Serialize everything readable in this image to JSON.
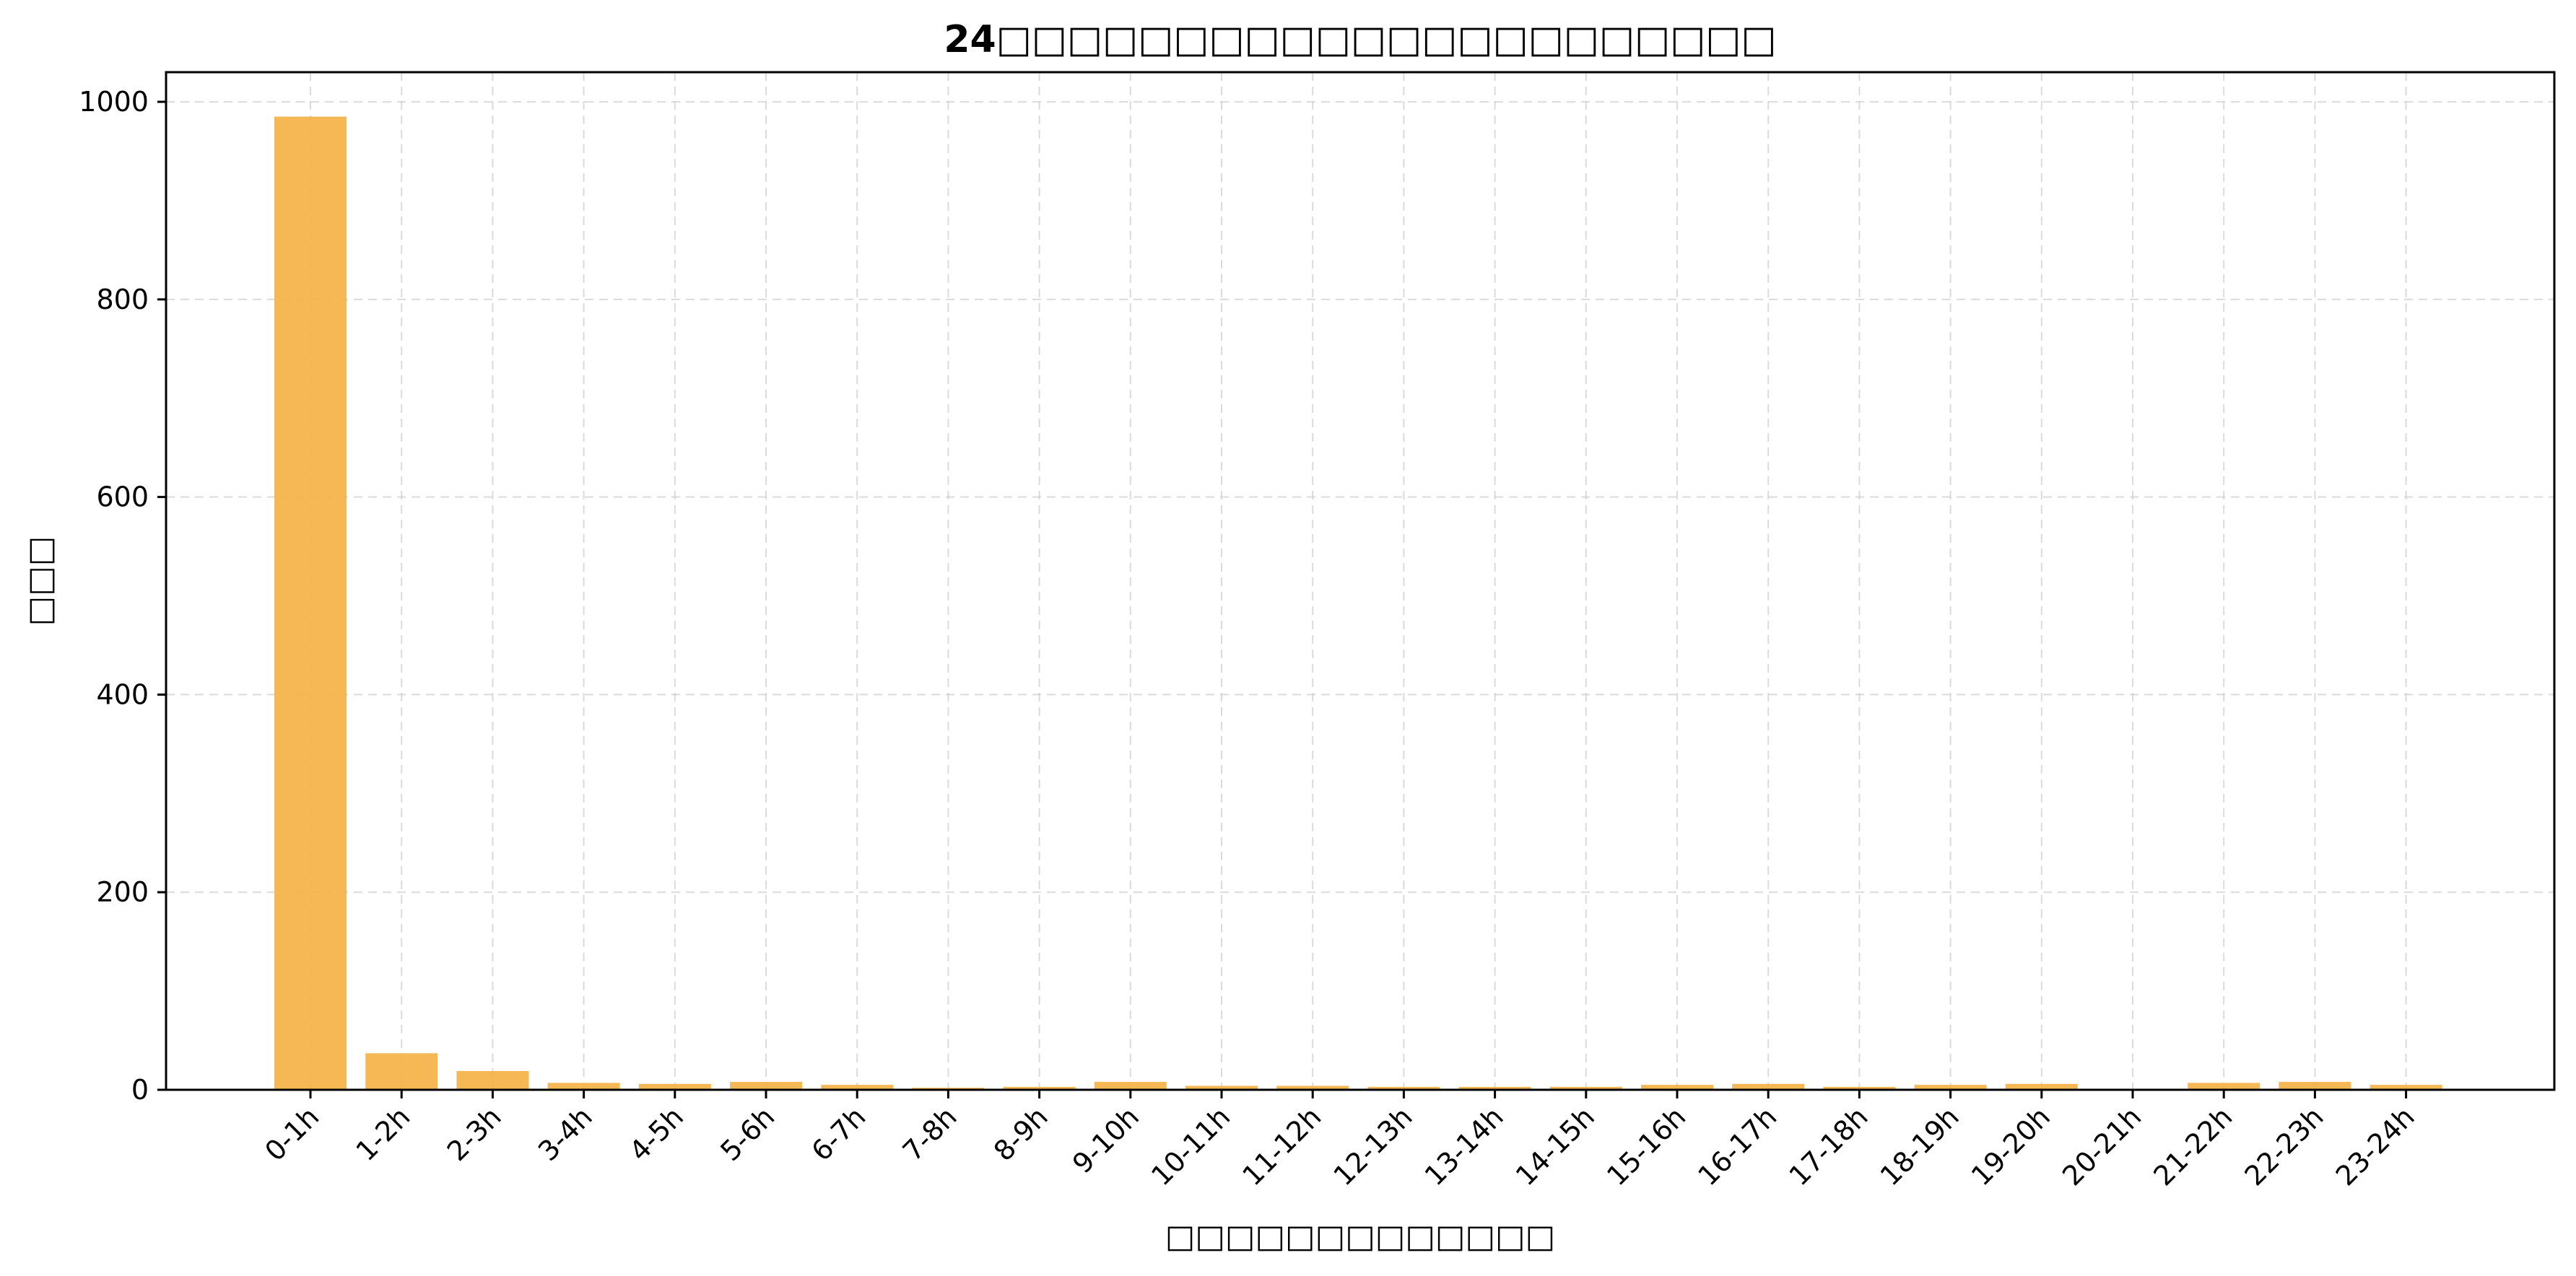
{
  "chart_data": {
    "type": "bar",
    "title": "24□□□□□□□□□□□□□□□□□□□□□□",
    "xlabel": "□□□□□□□□□□□□□",
    "ylabel": "□□□",
    "categories": [
      "0-1h",
      "1-2h",
      "2-3h",
      "3-4h",
      "4-5h",
      "5-6h",
      "6-7h",
      "7-8h",
      "8-9h",
      "9-10h",
      "10-11h",
      "11-12h",
      "12-13h",
      "13-14h",
      "14-15h",
      "15-16h",
      "16-17h",
      "17-18h",
      "18-19h",
      "19-20h",
      "20-21h",
      "21-22h",
      "22-23h",
      "23-24h"
    ],
    "values": [
      985,
      37,
      19,
      7,
      6,
      8,
      5,
      2,
      3,
      8,
      4,
      4,
      3,
      3,
      3,
      5,
      6,
      3,
      5,
      6,
      0,
      7,
      8,
      5
    ],
    "ylim": [
      0,
      1030
    ],
    "yticks": [
      0,
      200,
      400,
      600,
      800,
      1000
    ],
    "grid": true,
    "bar_color": "#F5B041"
  }
}
